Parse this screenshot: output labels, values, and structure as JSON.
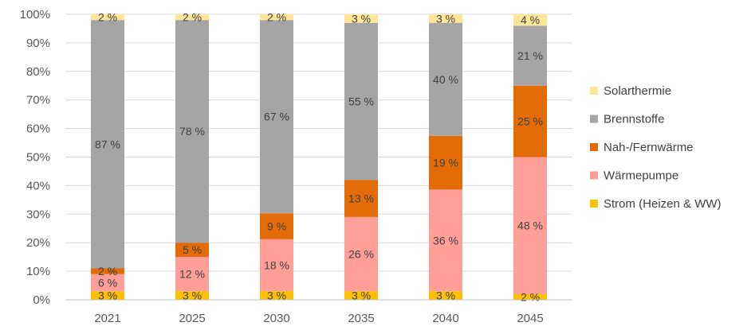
{
  "chart_data": {
    "type": "bar",
    "stacked": true,
    "percent": true,
    "categories": [
      "2021",
      "2025",
      "2030",
      "2035",
      "2040",
      "2045"
    ],
    "ylim": [
      0,
      100
    ],
    "yticks": [
      0,
      10,
      20,
      30,
      40,
      50,
      60,
      70,
      80,
      90,
      100
    ],
    "ytick_labels": [
      "0%",
      "10%",
      "20%",
      "30%",
      "40%",
      "50%",
      "60%",
      "70%",
      "80%",
      "90%",
      "100%"
    ],
    "grid": true,
    "legend_position": "right",
    "series": [
      {
        "name": "Strom (Heizen & WW)",
        "color": "#FFC000",
        "values": [
          3,
          3,
          3,
          3,
          3,
          2
        ],
        "labels": [
          "3 %",
          "3 %",
          "3 %",
          "3 %",
          "3 %",
          "2 %"
        ]
      },
      {
        "name": "Wärmepumpe",
        "color": "#FF9F97",
        "values": [
          6,
          12,
          18,
          26,
          36,
          48
        ],
        "labels": [
          "6 %",
          "12 %",
          "18 %",
          "26 %",
          "36 %",
          "48 %"
        ]
      },
      {
        "name": "Nah-/Fernwärme",
        "color": "#E36C09",
        "values": [
          2,
          5,
          9,
          13,
          19,
          25
        ],
        "labels": [
          "2 %",
          "5 %",
          "9 %",
          "13 %",
          "19 %",
          "25 %"
        ]
      },
      {
        "name": "Brennstoffe",
        "color": "#A5A5A5",
        "values": [
          87,
          78,
          67,
          55,
          40,
          21
        ],
        "labels": [
          "87 %",
          "78 %",
          "67 %",
          "55 %",
          "40 %",
          "21 %"
        ]
      },
      {
        "name": "Solarthermie",
        "color": "#FFE699",
        "values": [
          2,
          2,
          2,
          3,
          3,
          4
        ],
        "labels": [
          "2 %",
          "2 %",
          "2 %",
          "3 %",
          "3 %",
          "4 %"
        ]
      }
    ],
    "legend_order": [
      "Solarthermie",
      "Brennstoffe",
      "Nah-/Fernwärme",
      "Wärmepumpe",
      "Strom (Heizen & WW)"
    ]
  }
}
